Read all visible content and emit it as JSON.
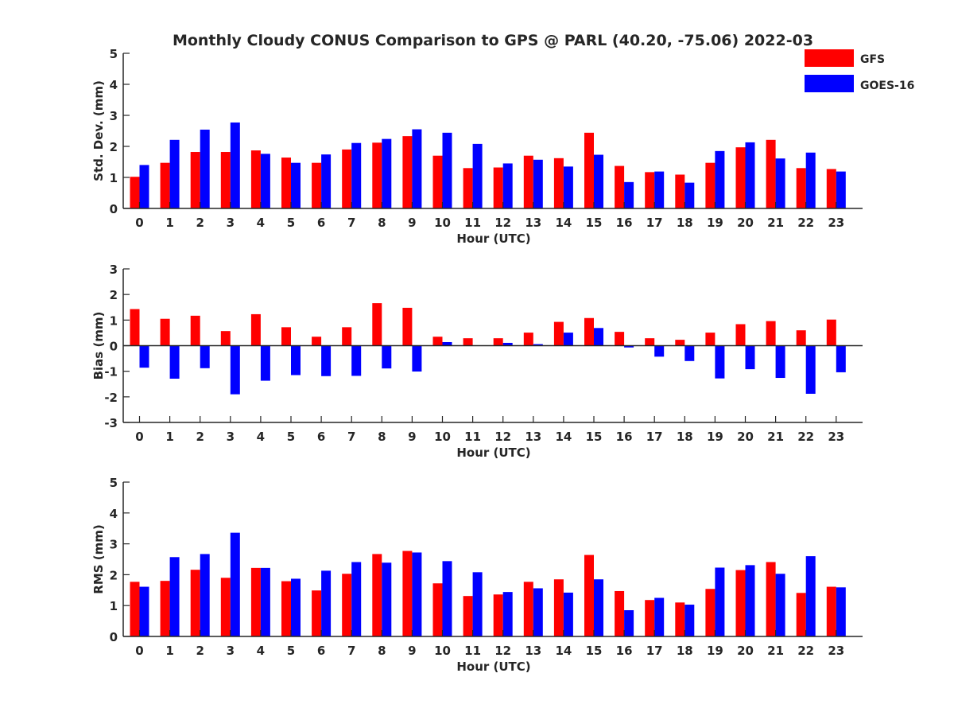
{
  "title": "Monthly Cloudy CONUS Comparison to GPS @ PARL (40.20, -75.06) 2022-03",
  "legend": [
    {
      "name": "GFS",
      "color": "#ff0000"
    },
    {
      "name": "GOES-16",
      "color": "#0000ff"
    }
  ],
  "chart_data": [
    {
      "type": "bar",
      "xlabel": "Hour (UTC)",
      "ylabel": "Std. Dev. (mm)",
      "ylim": [
        0,
        5
      ],
      "yticks": [
        0,
        1,
        2,
        3,
        4,
        5
      ],
      "categories": [
        "0",
        "1",
        "2",
        "3",
        "4",
        "5",
        "6",
        "7",
        "8",
        "9",
        "10",
        "11",
        "12",
        "13",
        "14",
        "15",
        "16",
        "17",
        "18",
        "19",
        "20",
        "21",
        "22",
        "23"
      ],
      "series": [
        {
          "name": "GFS",
          "color": "#ff0000",
          "values": [
            1.02,
            1.47,
            1.82,
            1.82,
            1.87,
            1.64,
            1.47,
            1.9,
            2.12,
            2.33,
            1.7,
            1.3,
            1.32,
            1.7,
            1.62,
            2.44,
            1.37,
            1.17,
            1.09,
            1.47,
            1.97,
            2.21,
            1.3,
            1.27
          ]
        },
        {
          "name": "GOES-16",
          "color": "#0000ff",
          "values": [
            1.4,
            2.21,
            2.54,
            2.77,
            1.76,
            1.47,
            1.74,
            2.11,
            2.24,
            2.55,
            2.44,
            2.08,
            1.45,
            1.57,
            1.35,
            1.73,
            0.85,
            1.19,
            0.83,
            1.85,
            2.13,
            1.61,
            1.8,
            1.19
          ]
        }
      ]
    },
    {
      "type": "bar",
      "xlabel": "Hour (UTC)",
      "ylabel": "Bias (mm)",
      "ylim": [
        -3,
        3
      ],
      "yticks": [
        -3,
        -2,
        -1,
        0,
        1,
        2,
        3
      ],
      "categories": [
        "0",
        "1",
        "2",
        "3",
        "4",
        "5",
        "6",
        "7",
        "8",
        "9",
        "10",
        "11",
        "12",
        "13",
        "14",
        "15",
        "16",
        "17",
        "18",
        "19",
        "20",
        "21",
        "22",
        "23"
      ],
      "series": [
        {
          "name": "GFS",
          "color": "#ff0000",
          "values": [
            1.43,
            1.05,
            1.17,
            0.57,
            1.23,
            0.72,
            0.35,
            0.72,
            1.66,
            1.48,
            0.35,
            0.29,
            0.29,
            0.51,
            0.93,
            1.08,
            0.54,
            0.29,
            0.23,
            0.51,
            0.84,
            0.96,
            0.6,
            1.02
          ]
        },
        {
          "name": "GOES-16",
          "color": "#0000ff",
          "values": [
            -0.86,
            -1.29,
            -0.88,
            -1.9,
            -1.37,
            -1.15,
            -1.19,
            -1.18,
            -0.89,
            -1.01,
            0.14,
            0.0,
            0.11,
            0.06,
            0.51,
            0.69,
            -0.07,
            -0.43,
            -0.6,
            -1.28,
            -0.92,
            -1.26,
            -1.88,
            -1.04
          ]
        }
      ]
    },
    {
      "type": "bar",
      "xlabel": "Hour (UTC)",
      "ylabel": "RMS (mm)",
      "ylim": [
        0,
        5
      ],
      "yticks": [
        0,
        1,
        2,
        3,
        4,
        5
      ],
      "categories": [
        "0",
        "1",
        "2",
        "3",
        "4",
        "5",
        "6",
        "7",
        "8",
        "9",
        "10",
        "11",
        "12",
        "13",
        "14",
        "15",
        "16",
        "17",
        "18",
        "19",
        "20",
        "21",
        "22",
        "23"
      ],
      "series": [
        {
          "name": "GFS",
          "color": "#ff0000",
          "values": [
            1.77,
            1.8,
            2.16,
            1.9,
            2.22,
            1.79,
            1.49,
            2.03,
            2.67,
            2.77,
            1.72,
            1.31,
            1.36,
            1.77,
            1.85,
            2.64,
            1.47,
            1.18,
            1.1,
            1.54,
            2.15,
            2.41,
            1.41,
            1.61
          ]
        },
        {
          "name": "GOES-16",
          "color": "#0000ff",
          "values": [
            1.61,
            2.57,
            2.67,
            3.36,
            2.22,
            1.87,
            2.13,
            2.41,
            2.39,
            2.72,
            2.44,
            2.08,
            1.44,
            1.56,
            1.42,
            1.85,
            0.85,
            1.25,
            1.03,
            2.23,
            2.31,
            2.03,
            2.6,
            1.59
          ]
        }
      ]
    }
  ]
}
